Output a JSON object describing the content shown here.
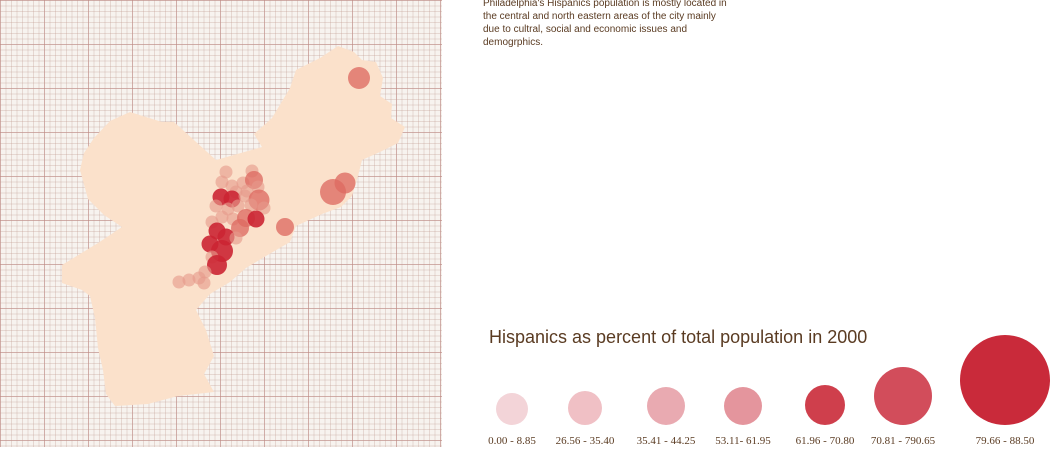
{
  "description": "Philadelphia's Hispanics population is mostly located in the central and north eastern areas of the city mainly due to cultral, social and economic issues and demogrphics.",
  "legend": {
    "title": "Hispanics as percent of total population in 2000",
    "classes": [
      {
        "label": "0.00 - 8.85",
        "color": "#f3d4d8"
      },
      {
        "label": "26.56 - 35.40",
        "color": "#f0c0c5"
      },
      {
        "label": "35.41 - 44.25",
        "color": "#e9aab1"
      },
      {
        "label": "53.11- 61.95",
        "color": "#e4959d"
      },
      {
        "label": "61.96 - 70.80",
        "color": "#cf3f4c"
      },
      {
        "label": "70.81 - 790.65",
        "color": "#d24d5b"
      },
      {
        "label": "79.66 - 88.50",
        "color": "#c92a3a"
      }
    ]
  },
  "map": {
    "city_fill": "#fbe1cb",
    "marker_colors": {
      "light": "#e59a8a",
      "medium": "#de6a62",
      "dark": "#cb2533"
    },
    "markers": [
      {
        "lon": 359,
        "lat": 78,
        "tone": "medium"
      },
      {
        "lon": 345,
        "lat": 183,
        "tone": "medium"
      },
      {
        "lon": 333,
        "lat": 192,
        "tone": "medium"
      },
      {
        "lon": 285,
        "lat": 227,
        "tone": "medium"
      },
      {
        "lon": 226,
        "lat": 172,
        "tone": "light"
      },
      {
        "lon": 252,
        "lat": 171,
        "tone": "light"
      },
      {
        "lon": 222,
        "lat": 182,
        "tone": "light"
      },
      {
        "lon": 232,
        "lat": 186,
        "tone": "light"
      },
      {
        "lon": 243,
        "lat": 183,
        "tone": "light"
      },
      {
        "lon": 254,
        "lat": 180,
        "tone": "medium"
      },
      {
        "lon": 258,
        "lat": 187,
        "tone": "light"
      },
      {
        "lon": 236,
        "lat": 192,
        "tone": "light"
      },
      {
        "lon": 247,
        "lat": 191,
        "tone": "light"
      },
      {
        "lon": 221,
        "lat": 197,
        "tone": "dark"
      },
      {
        "lon": 232,
        "lat": 199,
        "tone": "dark"
      },
      {
        "lon": 245,
        "lat": 196,
        "tone": "light"
      },
      {
        "lon": 259,
        "lat": 200,
        "tone": "medium"
      },
      {
        "lon": 216,
        "lat": 206,
        "tone": "light"
      },
      {
        "lon": 228,
        "lat": 209,
        "tone": "light"
      },
      {
        "lon": 238,
        "lat": 206,
        "tone": "light"
      },
      {
        "lon": 251,
        "lat": 205,
        "tone": "light"
      },
      {
        "lon": 264,
        "lat": 208,
        "tone": "light"
      },
      {
        "lon": 222,
        "lat": 217,
        "tone": "light"
      },
      {
        "lon": 233,
        "lat": 219,
        "tone": "light"
      },
      {
        "lon": 246,
        "lat": 218,
        "tone": "medium"
      },
      {
        "lon": 256,
        "lat": 219,
        "tone": "dark"
      },
      {
        "lon": 212,
        "lat": 222,
        "tone": "light"
      },
      {
        "lon": 240,
        "lat": 228,
        "tone": "medium"
      },
      {
        "lon": 217,
        "lat": 231,
        "tone": "dark"
      },
      {
        "lon": 226,
        "lat": 237,
        "tone": "dark"
      },
      {
        "lon": 236,
        "lat": 238,
        "tone": "light"
      },
      {
        "lon": 210,
        "lat": 244,
        "tone": "dark"
      },
      {
        "lon": 222,
        "lat": 251,
        "tone": "dark"
      },
      {
        "lon": 212,
        "lat": 257,
        "tone": "light"
      },
      {
        "lon": 217,
        "lat": 265,
        "tone": "dark"
      },
      {
        "lon": 205,
        "lat": 272,
        "tone": "light"
      },
      {
        "lon": 199,
        "lat": 278,
        "tone": "light"
      },
      {
        "lon": 189,
        "lat": 280,
        "tone": "light"
      },
      {
        "lon": 179,
        "lat": 282,
        "tone": "light"
      },
      {
        "lon": 204,
        "lat": 283,
        "tone": "light"
      }
    ]
  }
}
